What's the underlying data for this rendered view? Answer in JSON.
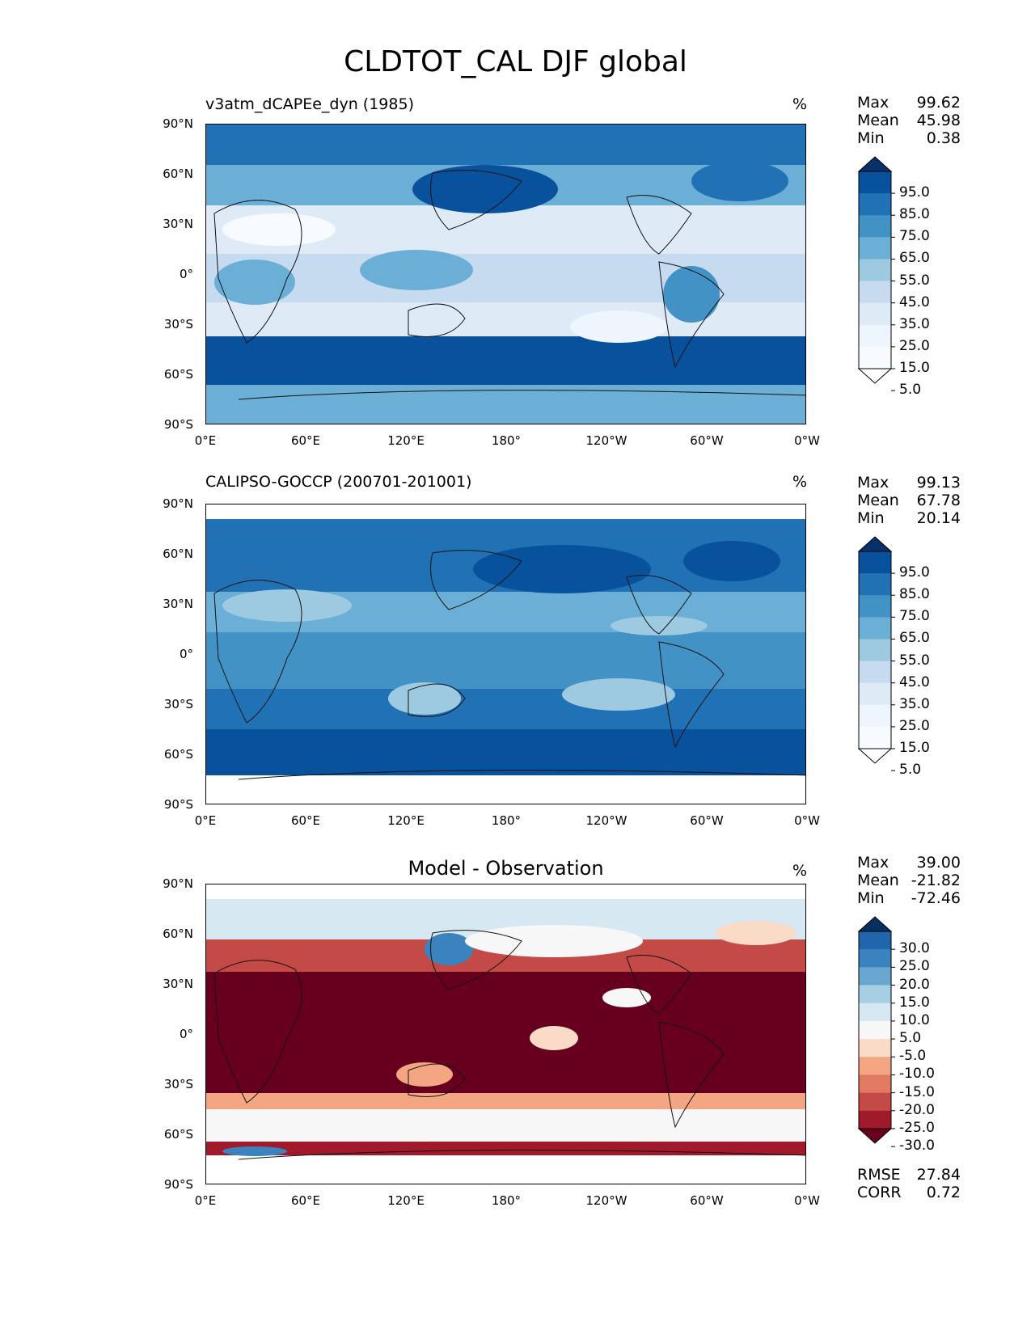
{
  "title": "CLDTOT_CAL DJF global",
  "units": "%",
  "lat_labels": [
    "90°N",
    "60°N",
    "30°N",
    "0°",
    "30°S",
    "60°S",
    "90°S"
  ],
  "lon_labels": [
    "0°E",
    "60°E",
    "120°E",
    "180°",
    "120°W",
    "60°W",
    "0°W"
  ],
  "panels": [
    {
      "title": "v3atm_dCAPEe_dyn (1985)",
      "stats": {
        "max_label": "Max",
        "max": "99.62",
        "mean_label": "Mean",
        "mean": "45.98",
        "min_label": "Min",
        "min": "0.38"
      },
      "colorbar_labels": [
        "95.0",
        "85.0",
        "75.0",
        "65.0",
        "55.0",
        "45.0",
        "35.0",
        "25.0",
        "15.0",
        "5.0"
      ],
      "colors": [
        "#08306b",
        "#08519c",
        "#2171b5",
        "#4292c6",
        "#6baed6",
        "#9ecae1",
        "#c6dbef",
        "#deebf7",
        "#eef5fc",
        "#f7fbff",
        "#ffffff"
      ]
    },
    {
      "title": "CALIPSO-GOCCP (200701-201001)",
      "stats": {
        "max_label": "Max",
        "max": "99.13",
        "mean_label": "Mean",
        "mean": "67.78",
        "min_label": "Min",
        "min": "20.14"
      },
      "colorbar_labels": [
        "95.0",
        "85.0",
        "75.0",
        "65.0",
        "55.0",
        "45.0",
        "35.0",
        "25.0",
        "15.0",
        "5.0"
      ],
      "colors": [
        "#08306b",
        "#08519c",
        "#2171b5",
        "#4292c6",
        "#6baed6",
        "#9ecae1",
        "#c6dbef",
        "#deebf7",
        "#eef5fc",
        "#f7fbff",
        "#ffffff"
      ]
    },
    {
      "title": "Model - Observation",
      "stats": {
        "max_label": "Max",
        "max": "39.00",
        "mean_label": "Mean",
        "mean": "-21.82",
        "min_label": "Min",
        "min": "-72.46"
      },
      "colorbar_labels": [
        "30.0",
        "25.0",
        "20.0",
        "15.0",
        "10.0",
        "5.0",
        "-5.0",
        "-10.0",
        "-15.0",
        "-20.0",
        "-25.0",
        "-30.0"
      ],
      "colors": [
        "#053061",
        "#2166ac",
        "#3a83bf",
        "#6aa7d0",
        "#a6cfe4",
        "#d6e8f2",
        "#f7f7f7",
        "#fadbc8",
        "#f4a582",
        "#e07a62",
        "#c44a47",
        "#a11a2b",
        "#67001f"
      ],
      "rmse_label": "RMSE",
      "rmse": "27.84",
      "corr_label": "CORR",
      "corr": "0.72"
    }
  ]
}
